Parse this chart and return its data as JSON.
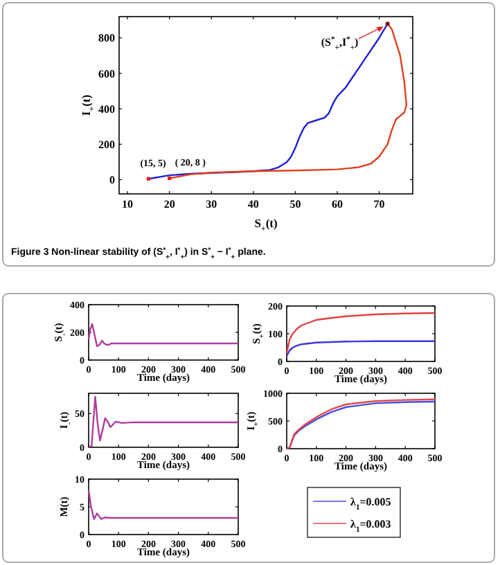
{
  "chart_data": [
    {
      "type": "line",
      "xlabel": "S$_{+}$(t)",
      "ylabel": "I$_{+}$(t)",
      "xlim": [
        8,
        78
      ],
      "ylim": [
        -80,
        920
      ],
      "xticks": [
        10,
        20,
        30,
        40,
        50,
        60,
        70
      ],
      "yticks": [
        0,
        200,
        400,
        600,
        800
      ],
      "grid": false,
      "legend": false,
      "series": [
        {
          "color": "#1f1fd6",
          "x": [
            15,
            20,
            25,
            30,
            35,
            40,
            44,
            46,
            48,
            49,
            50,
            51,
            52,
            53,
            55,
            57,
            58,
            59,
            60,
            62,
            64,
            66,
            68,
            70,
            72
          ],
          "values": [
            5,
            25,
            33,
            38,
            42,
            48,
            55,
            70,
            100,
            130,
            180,
            240,
            290,
            320,
            335,
            350,
            375,
            430,
            470,
            520,
            590,
            660,
            730,
            800,
            880
          ]
        },
        {
          "color": "#e0401e",
          "x": [
            20,
            25,
            30,
            40,
            50,
            60,
            65,
            68,
            70,
            72,
            73,
            74,
            75,
            76,
            76.5,
            76,
            75,
            73,
            72
          ],
          "values": [
            8,
            30,
            40,
            48,
            52,
            58,
            70,
            90,
            130,
            200,
            280,
            340,
            360,
            380,
            420,
            550,
            700,
            850,
            880
          ]
        }
      ],
      "annotations": [
        {
          "text": "(15, 5)",
          "x": 15,
          "y": 5
        },
        {
          "text": "( 20, 8 )",
          "x": 20,
          "y": 8
        },
        {
          "text": "(S$^{*}$$_{+}$,I$^{*}$$_{+}$)",
          "x": 72,
          "y": 880
        },
        "Figure 3  Non-linear stability of (S$^{*}$$_{+}$, I$^{*}$$_{+}$) in S$^{*}$$_{+}$ − I$^{*}$$_{+}$ plane."
      ]
    },
    {
      "type": "line",
      "xlabel": "Time (days)",
      "ylabel": "S$_{-}$(t)",
      "xlim": [
        0,
        500
      ],
      "ylim": [
        0,
        400
      ],
      "xticks": [
        0,
        100,
        200,
        300,
        400,
        500
      ],
      "yticks": [
        0,
        200,
        400
      ],
      "legend": false,
      "series": [
        {
          "color": "#b03c9c",
          "x": [
            0,
            5,
            12,
            20,
            28,
            36,
            45,
            52,
            60,
            68,
            75,
            85,
            100,
            150,
            200,
            300,
            400,
            500
          ],
          "values": [
            150,
            220,
            260,
            180,
            100,
            110,
            140,
            120,
            110,
            110,
            120,
            120,
            120,
            120,
            120,
            120,
            120,
            120
          ]
        }
      ]
    },
    {
      "type": "line",
      "xlabel": "Time (days)",
      "ylabel": "S$_{+}$(t)",
      "xlim": [
        0,
        500
      ],
      "ylim": [
        0,
        200
      ],
      "xticks": [
        0,
        100,
        200,
        300,
        400,
        500
      ],
      "yticks": [
        0,
        100,
        200
      ],
      "legend": false,
      "series": [
        {
          "color": "#3a3ad8",
          "x": [
            0,
            10,
            20,
            35,
            50,
            75,
            100,
            150,
            200,
            300,
            400,
            500
          ],
          "values": [
            20,
            40,
            50,
            57,
            62,
            65,
            68,
            70,
            72,
            73,
            73,
            73
          ]
        },
        {
          "color": "#e04040",
          "x": [
            0,
            10,
            20,
            35,
            50,
            75,
            100,
            150,
            200,
            300,
            400,
            500
          ],
          "values": [
            30,
            80,
            100,
            118,
            130,
            140,
            150,
            157,
            163,
            170,
            173,
            175
          ]
        }
      ]
    },
    {
      "type": "line",
      "xlabel": "Time (days)",
      "ylabel": "I$_{-}$(t)",
      "xlim": [
        0,
        500
      ],
      "ylim": [
        0,
        80
      ],
      "xticks": [
        0,
        100,
        200,
        300,
        400,
        500
      ],
      "yticks": [
        0,
        50
      ],
      "legend": false,
      "series": [
        {
          "color": "#b03c9c",
          "x": [
            0,
            10,
            16,
            22,
            30,
            38,
            46,
            55,
            64,
            72,
            80,
            90,
            110,
            150,
            200,
            300,
            400,
            500
          ],
          "values": [
            0,
            2,
            40,
            75,
            35,
            10,
            25,
            43,
            38,
            30,
            33,
            38,
            36,
            37,
            37,
            37,
            37,
            37
          ]
        }
      ]
    },
    {
      "type": "line",
      "xlabel": "Time (days)",
      "ylabel": "I$_{+}$(t)",
      "xlim": [
        0,
        500
      ],
      "ylim": [
        0,
        1000
      ],
      "xticks": [
        0,
        100,
        200,
        300,
        400,
        500
      ],
      "yticks": [
        0,
        500,
        1000
      ],
      "legend": "bottom",
      "series": [
        {
          "name": "λ$_{1}$=0.005",
          "color": "#4a4ae0",
          "x": [
            0,
            10,
            25,
            40,
            60,
            100,
            150,
            200,
            300,
            400,
            500
          ],
          "values": [
            0,
            20,
            240,
            320,
            400,
            530,
            660,
            750,
            820,
            840,
            850
          ]
        },
        {
          "name": "λ$_{1}$=0.003",
          "color": "#e04a4a",
          "x": [
            0,
            10,
            25,
            40,
            60,
            100,
            150,
            200,
            300,
            400,
            500
          ],
          "values": [
            0,
            20,
            260,
            340,
            430,
            570,
            710,
            800,
            860,
            880,
            890
          ]
        }
      ]
    },
    {
      "type": "line",
      "xlabel": "Time (days)",
      "ylabel": "M(t)",
      "xlim": [
        0,
        500
      ],
      "ylim": [
        0,
        10
      ],
      "xticks": [
        0,
        100,
        200,
        300,
        400,
        500
      ],
      "yticks": [
        0,
        5,
        10
      ],
      "legend": false,
      "series": [
        {
          "color": "#b03c9c",
          "x": [
            0,
            8,
            18,
            28,
            42,
            55,
            70,
            100,
            200,
            300,
            400,
            500
          ],
          "values": [
            8,
            5,
            2.8,
            3.8,
            2.8,
            3.1,
            3,
            3,
            3,
            3,
            3,
            3
          ]
        }
      ]
    }
  ]
}
